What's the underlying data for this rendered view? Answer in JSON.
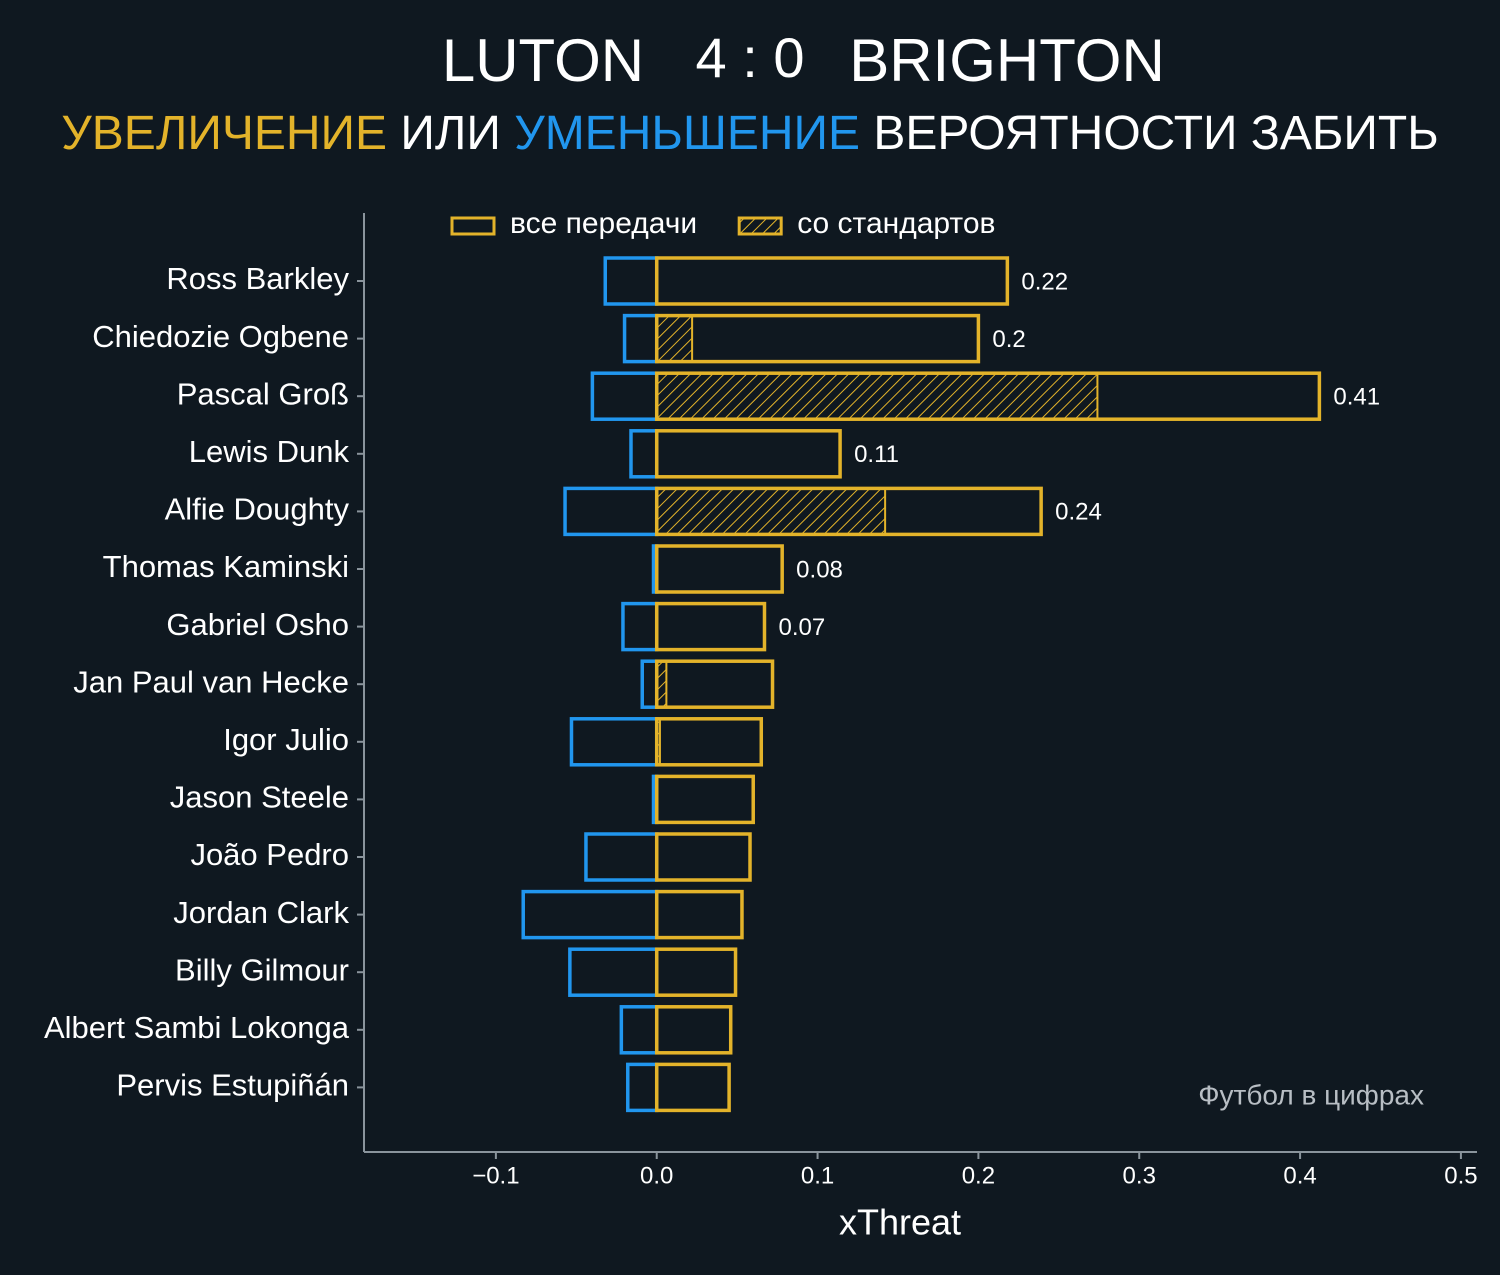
{
  "chart_data": {
    "type": "bar",
    "orientation": "horizontal",
    "title": {
      "home": "LUTON",
      "score": "4 : 0",
      "away": "BRIGHTON"
    },
    "subtitle": {
      "part1": "УВЕЛИЧЕНИЕ",
      "part2": "ИЛИ",
      "part3": "УМЕНЬШЕНИЕ",
      "part4": "ВЕРОЯТНОСТИ ЗАБИТЬ"
    },
    "xlabel": "xThreat",
    "annotation": "Футбол в цифрах",
    "categories": [
      "Ross Barkley",
      "Chiedozie Ogbene",
      "Pascal Groß",
      "Lewis Dunk",
      "Alfie Doughty",
      "Thomas Kaminski",
      "Gabriel Osho",
      "Jan Paul van Hecke",
      "Igor Julio",
      "Jason Steele",
      "João Pedro",
      "Jordan Clark",
      "Billy Gilmour",
      "Albert Sambi Lokonga",
      "Pervis Estupiñán"
    ],
    "series": [
      {
        "name": "все передачи",
        "color": "#e3b32a",
        "values": [
          0.218,
          0.2,
          0.412,
          0.114,
          0.239,
          0.078,
          0.067,
          0.072,
          0.065,
          0.06,
          0.058,
          0.053,
          0.049,
          0.046,
          0.045
        ],
        "value_labels": [
          "0.22",
          "0.2",
          "0.41",
          "0.11",
          "0.24",
          "0.08",
          "0.07",
          null,
          null,
          null,
          null,
          null,
          null,
          null,
          null
        ]
      },
      {
        "name": "со стандартов",
        "color": "#e3b32a",
        "hatch": true,
        "values": [
          0,
          0.022,
          0.274,
          0,
          0.142,
          0,
          0,
          0.006,
          0.002,
          0,
          0,
          0,
          0,
          0,
          0
        ]
      },
      {
        "color": "#2196ee",
        "values": [
          -0.032,
          -0.02,
          -0.04,
          -0.016,
          -0.057,
          -0.002,
          -0.021,
          -0.009,
          -0.053,
          -0.002,
          -0.044,
          -0.083,
          -0.054,
          -0.022,
          -0.018
        ]
      }
    ],
    "xlim": [
      -0.182,
      0.51
    ],
    "xticks": [
      {
        "value": -0.1,
        "label": "−0.1"
      },
      {
        "value": 0,
        "label": "0.0"
      },
      0.1,
      0.2,
      0.3,
      0.4,
      0.5
    ]
  }
}
